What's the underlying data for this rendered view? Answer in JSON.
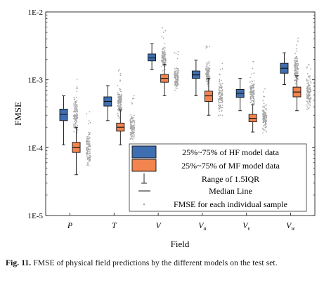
{
  "chart_data": {
    "type": "box",
    "ylabel": "FMSE",
    "xlabel": "Field",
    "yscale": "log",
    "ylim": [
      1e-05,
      0.01
    ],
    "yticks": [
      "1E-5",
      "1E-4",
      "1E-3",
      "1E-2"
    ],
    "categories": [
      {
        "base": "P",
        "sub": ""
      },
      {
        "base": "T",
        "sub": ""
      },
      {
        "base": "V",
        "sub": ""
      },
      {
        "base": "V",
        "sub": "u"
      },
      {
        "base": "V",
        "sub": "v"
      },
      {
        "base": "V",
        "sub": "w"
      }
    ],
    "series": [
      {
        "name": "25%~75% of HF model data",
        "color": "#3f6fb0",
        "boxes": [
          {
            "whisker_low": 0.00011,
            "q1": 0.00025,
            "median": 0.00031,
            "q3": 0.00037,
            "whisker_high": 0.00058
          },
          {
            "whisker_low": 0.00025,
            "q1": 0.00041,
            "median": 0.00048,
            "q3": 0.00056,
            "whisker_high": 0.00082
          },
          {
            "whisker_low": 0.0014,
            "q1": 0.0019,
            "median": 0.0021,
            "q3": 0.0024,
            "whisker_high": 0.0034
          },
          {
            "whisker_low": 0.00058,
            "q1": 0.00105,
            "median": 0.00118,
            "q3": 0.00135,
            "whisker_high": 0.00195
          },
          {
            "whisker_low": 0.00035,
            "q1": 0.00055,
            "median": 0.00063,
            "q3": 0.00072,
            "whisker_high": 0.00105
          },
          {
            "whisker_low": 0.00085,
            "q1": 0.00125,
            "median": 0.00148,
            "q3": 0.00175,
            "whisker_high": 0.0025
          }
        ]
      },
      {
        "name": "25%~75% of MF model data",
        "color": "#f2844f",
        "boxes": [
          {
            "whisker_low": 4e-05,
            "q1": 8.5e-05,
            "median": 0.0001,
            "q3": 0.00012,
            "whisker_high": 0.0002
          },
          {
            "whisker_low": 0.00011,
            "q1": 0.000175,
            "median": 0.0002,
            "q3": 0.00023,
            "whisker_high": 0.00036
          },
          {
            "whisker_low": 0.00058,
            "q1": 0.00092,
            "median": 0.00105,
            "q3": 0.0012,
            "whisker_high": 0.0017
          },
          {
            "whisker_low": 0.0003,
            "q1": 0.00048,
            "median": 0.00058,
            "q3": 0.00068,
            "whisker_high": 0.00105
          },
          {
            "whisker_low": 0.00017,
            "q1": 0.00024,
            "median": 0.00027,
            "q3": 0.00031,
            "whisker_high": 0.00043
          },
          {
            "whisker_low": 0.00035,
            "q1": 0.00056,
            "median": 0.00066,
            "q3": 0.00078,
            "whisker_high": 0.00115
          }
        ]
      }
    ],
    "scatter": {
      "name": "FMSE for each individual sample",
      "color": "#a6a6a6"
    },
    "legend": {
      "placement": "bottom-right",
      "entries": [
        {
          "label": "25%~75% of HF model data",
          "kind": "box-hf"
        },
        {
          "label": "25%~75% of MF model data",
          "kind": "box-mf"
        },
        {
          "label": "Range of 1.5IQR",
          "kind": "whisker"
        },
        {
          "label": "Median Line",
          "kind": "line"
        },
        {
          "label": "FMSE for each individual sample",
          "kind": "dot"
        }
      ]
    },
    "grid": false
  },
  "caption": {
    "label": "Fig. 11.",
    "text": "FMSE of physical field predictions by the different models on the test set."
  }
}
